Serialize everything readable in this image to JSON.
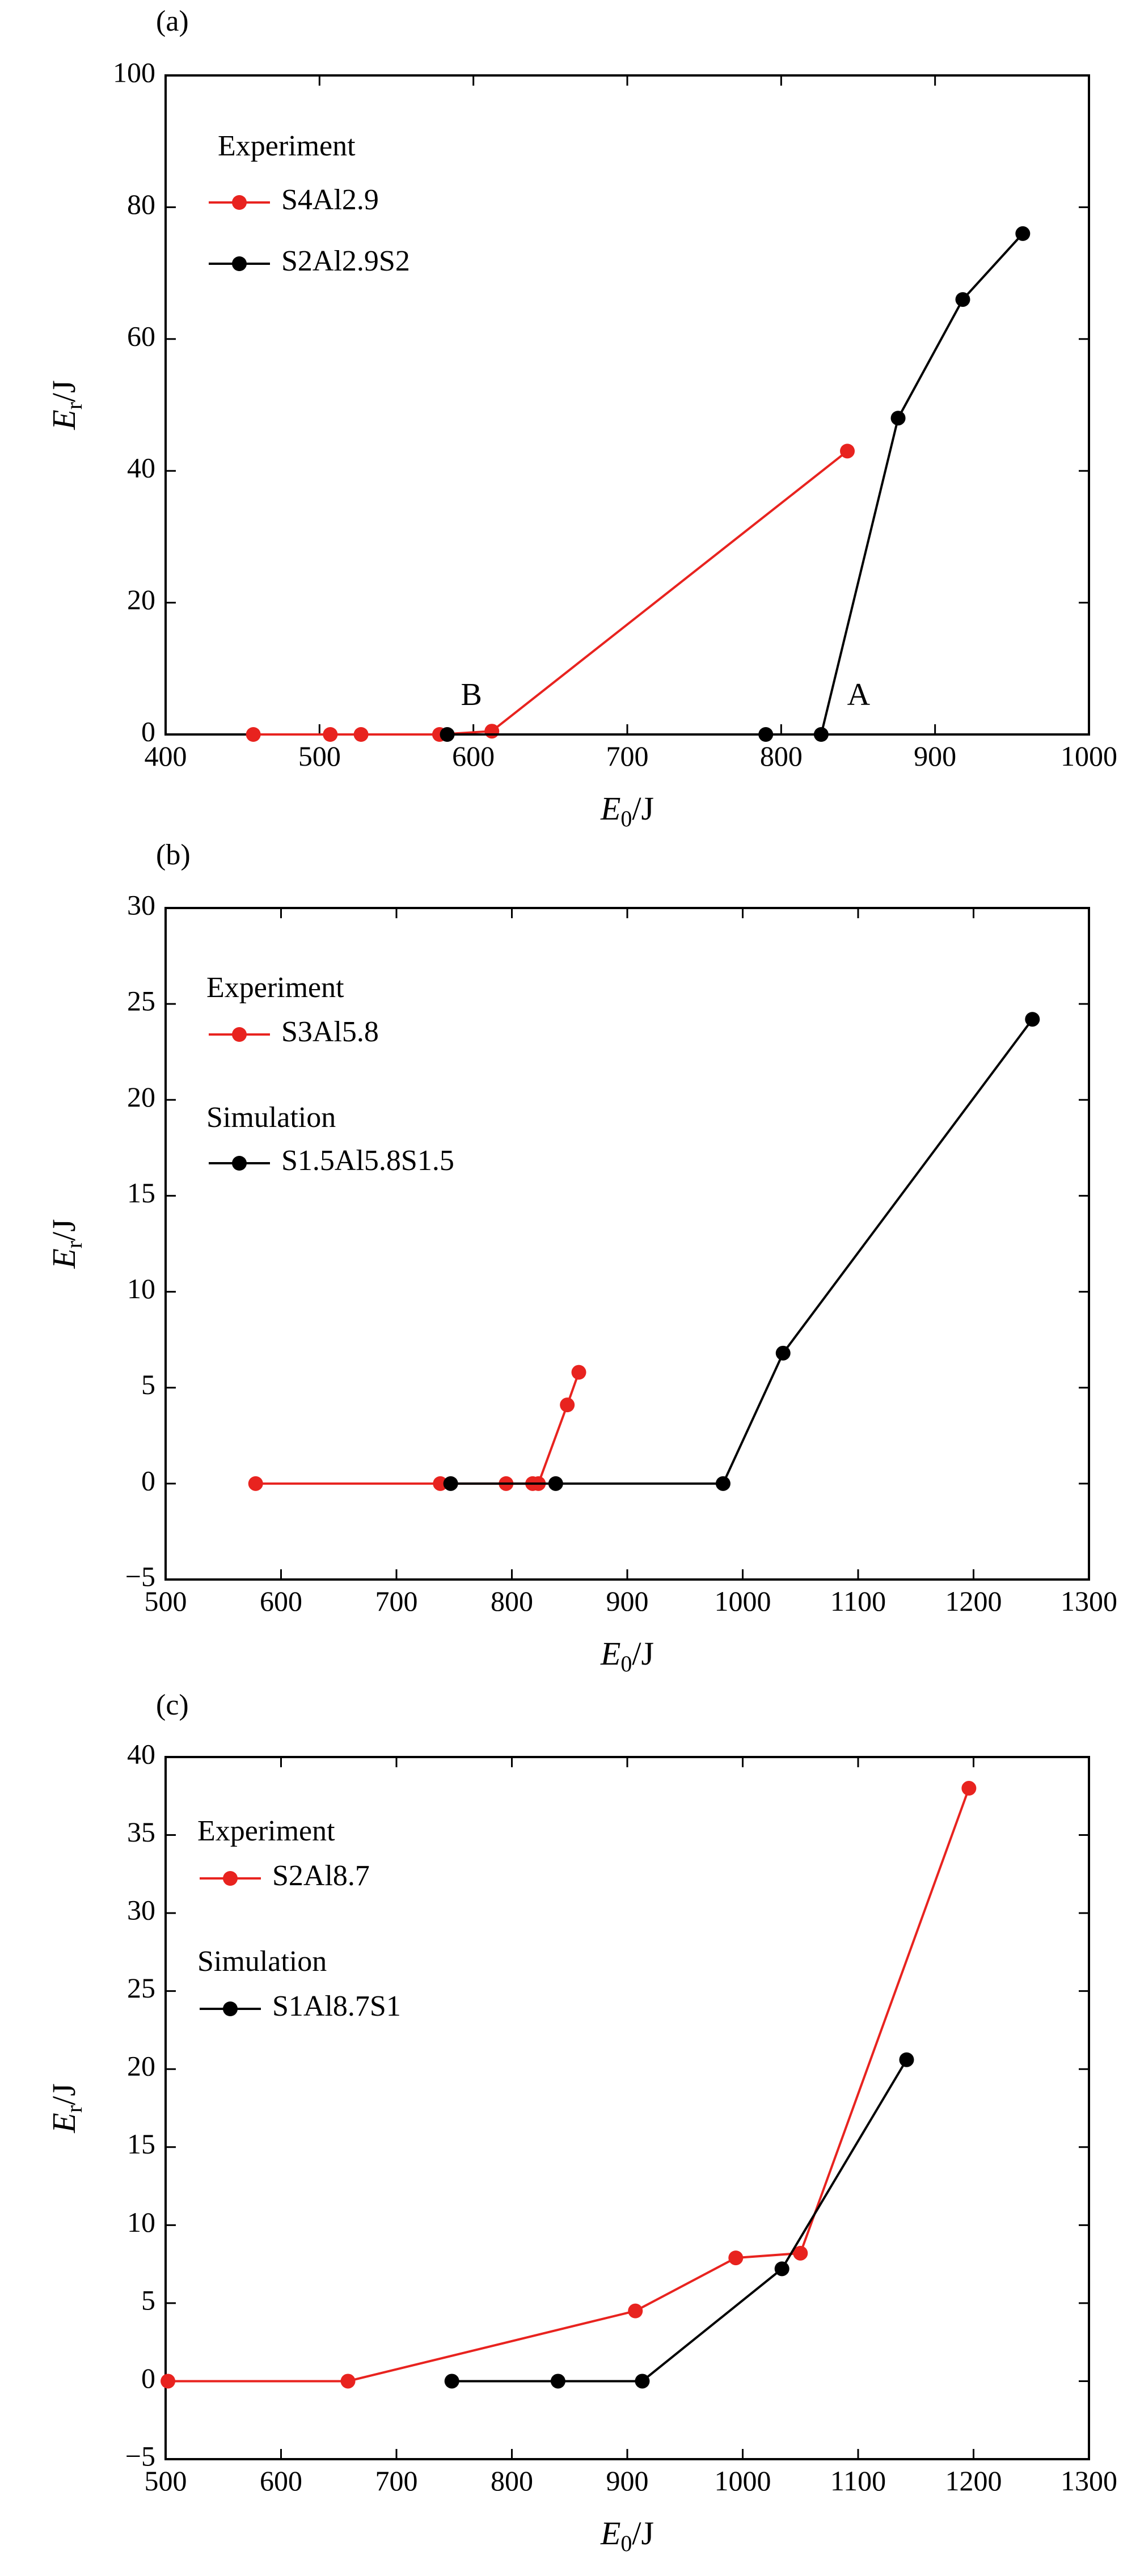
{
  "chart_data": [
    {
      "type": "line",
      "panel_label": "(a)",
      "xlabel": {
        "main": "E",
        "sub": "0",
        "unit": "/J"
      },
      "ylabel": {
        "main": "E",
        "sub": "r",
        "unit": "/J"
      },
      "xlim": [
        400,
        1000
      ],
      "ylim": [
        0,
        100
      ],
      "xticks": [
        "400",
        "500",
        "600",
        "700",
        "800",
        "900",
        "1000"
      ],
      "yticks": [
        "0",
        "20",
        "40",
        "60",
        "80",
        "100"
      ],
      "grid": false,
      "legend_position": "top-left",
      "legend_groups": [
        {
          "heading": "Experiment",
          "series": [
            0
          ]
        },
        {
          "heading": "",
          "series": [
            1
          ]
        }
      ],
      "series": [
        {
          "name": "S4Al2.9",
          "color": "#e8231f",
          "x": [
            457,
            507,
            527,
            578,
            612,
            843
          ],
          "y": [
            0,
            0,
            0,
            0,
            0.5,
            43
          ]
        },
        {
          "name": "S2Al2.9S2",
          "color": "#000000",
          "x": [
            583,
            790,
            826,
            876,
            918,
            957
          ],
          "y": [
            0,
            0,
            0,
            48,
            66,
            76
          ]
        }
      ],
      "annotations": [
        {
          "text": "B",
          "x": 612,
          "y": 0,
          "dashed_drop": true
        },
        {
          "text": "A",
          "x": 826,
          "y": 0,
          "dashed_drop": true
        }
      ]
    },
    {
      "type": "line",
      "panel_label": "(b)",
      "xlabel": {
        "main": "E",
        "sub": "0",
        "unit": "/J"
      },
      "ylabel": {
        "main": "E",
        "sub": "r",
        "unit": "/J"
      },
      "xlim": [
        500,
        1300
      ],
      "ylim": [
        -5,
        30
      ],
      "xticks": [
        "500",
        "600",
        "700",
        "800",
        "900",
        "1000",
        "1100",
        "1200",
        "1300"
      ],
      "yticks": [
        "−5",
        "0",
        "5",
        "10",
        "15",
        "20",
        "25",
        "30"
      ],
      "grid": false,
      "legend_position": "top-left",
      "legend_groups": [
        {
          "heading": "Experiment",
          "series": [
            0
          ]
        },
        {
          "heading": "Simulation",
          "series": [
            1
          ]
        }
      ],
      "series": [
        {
          "name": "S3Al5.8",
          "color": "#e8231f",
          "x": [
            578,
            738,
            795,
            818,
            823,
            848,
            858
          ],
          "y": [
            0,
            0,
            0,
            0,
            0,
            4.1,
            5.8
          ]
        },
        {
          "name": "S1.5Al5.8S1.5",
          "color": "#000000",
          "x": [
            747,
            838,
            983,
            1035,
            1251
          ],
          "y": [
            0,
            0,
            0,
            6.8,
            24.2
          ]
        }
      ],
      "annotations": []
    },
    {
      "type": "line",
      "panel_label": "(c)",
      "xlabel": {
        "main": "E",
        "sub": "0",
        "unit": "/J"
      },
      "ylabel": {
        "main": "E",
        "sub": "r",
        "unit": "/J"
      },
      "xlim": [
        500,
        1300
      ],
      "ylim": [
        -5,
        40
      ],
      "xticks": [
        "500",
        "600",
        "700",
        "800",
        "900",
        "1000",
        "1100",
        "1200",
        "1300"
      ],
      "yticks": [
        "−5",
        "0",
        "5",
        "10",
        "15",
        "20",
        "25",
        "30",
        "35",
        "40"
      ],
      "grid": false,
      "legend_position": "top-left",
      "legend_groups": [
        {
          "heading": "Experiment",
          "series": [
            0
          ]
        },
        {
          "heading": "Simulation",
          "series": [
            1
          ]
        }
      ],
      "series": [
        {
          "name": "S2Al8.7",
          "color": "#e8231f",
          "x": [
            502,
            658,
            907,
            994,
            1050,
            1196
          ],
          "y": [
            0,
            0,
            4.5,
            7.9,
            8.2,
            38
          ]
        },
        {
          "name": "S1Al8.7S1",
          "color": "#000000",
          "x": [
            748,
            840,
            913,
            1034,
            1142
          ],
          "y": [
            0,
            0,
            0,
            7.2,
            20.6
          ]
        }
      ],
      "annotations": []
    }
  ]
}
